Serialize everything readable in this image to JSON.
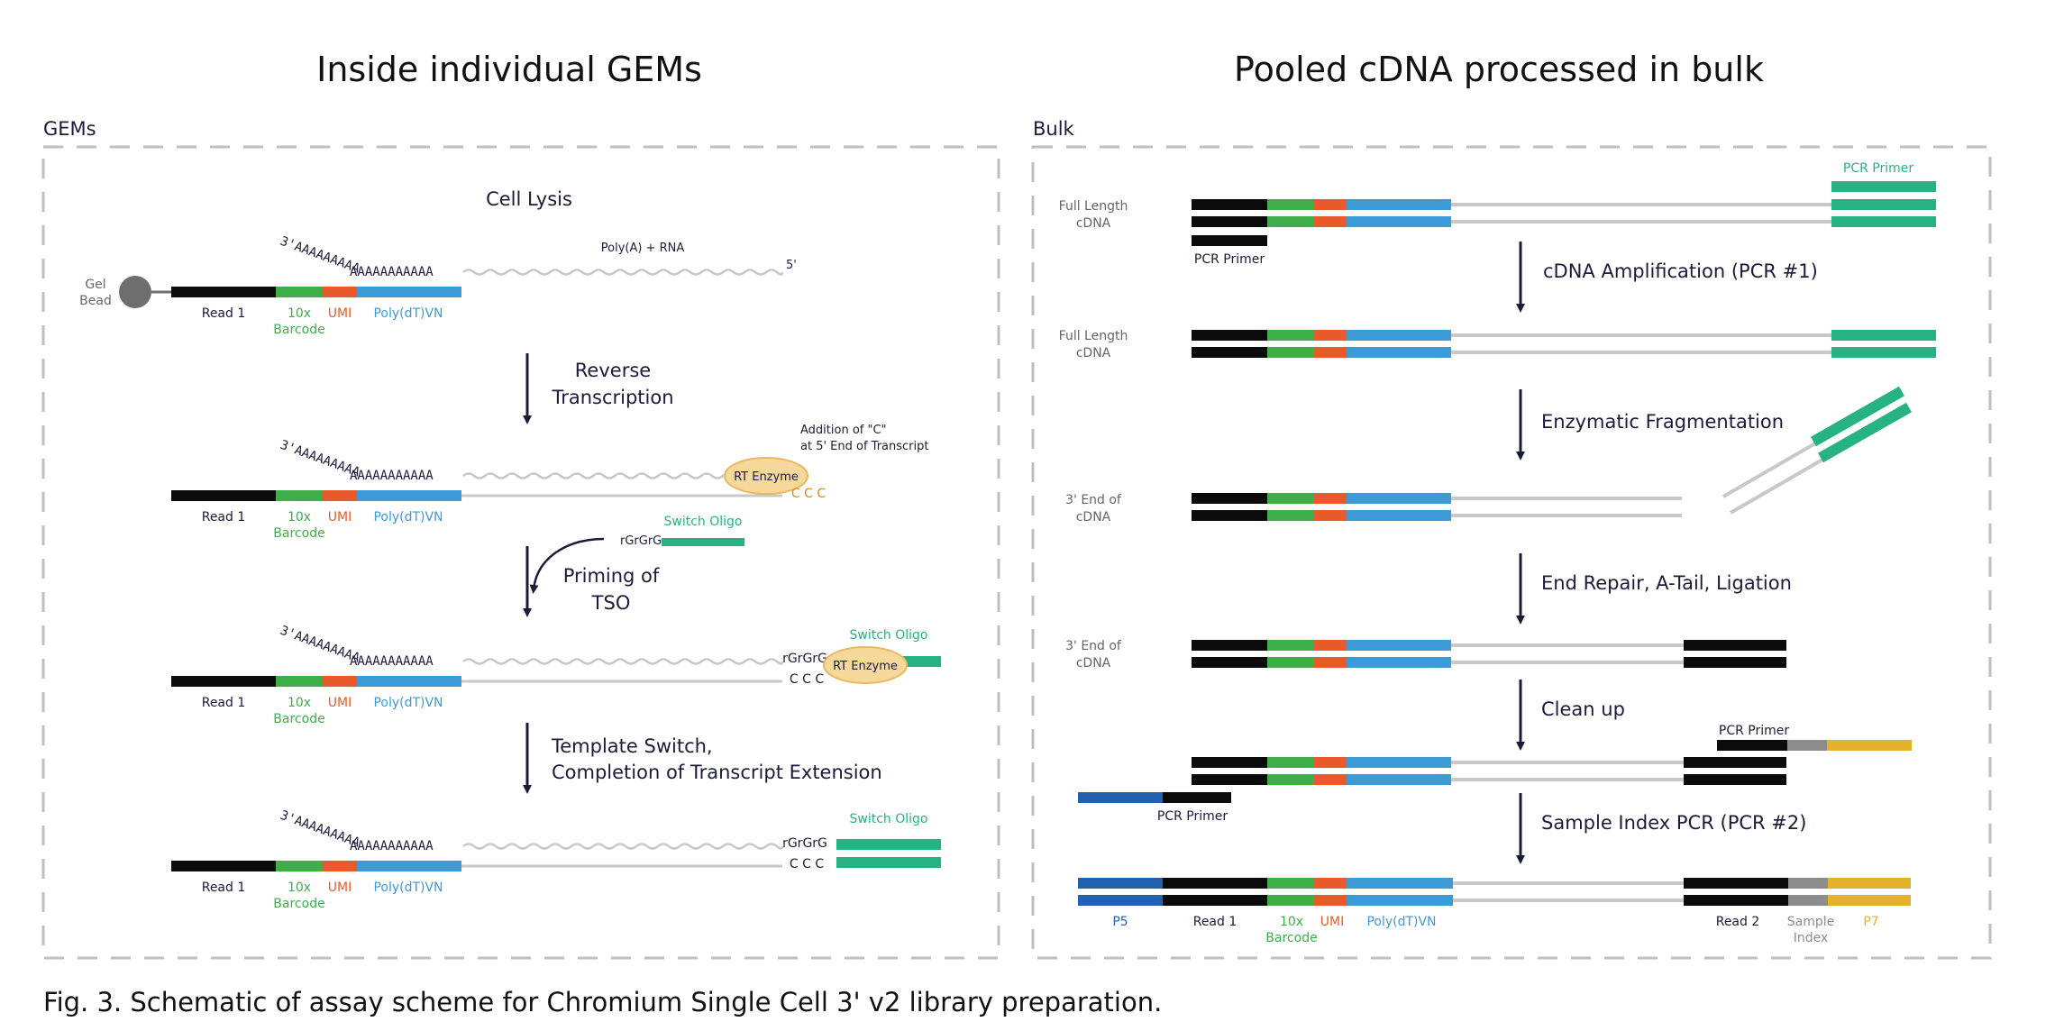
{
  "titles": {
    "left": "Inside individual GEMs",
    "right": "Pooled cDNA processed in bulk"
  },
  "sections": {
    "left": "GEMs",
    "right": "Bulk"
  },
  "colors": {
    "black": "#0b0b0b",
    "barcode": "#3fae49",
    "umi": "#e95a2b",
    "polydt": "#3c9ad6",
    "teal": "#27b283",
    "p5": "#2360ae",
    "sample_index": "#8c8c8c",
    "p7": "#e2b32a",
    "strand": "#c8c8c8",
    "enzyme_fill": "#f6d99a",
    "enzyme_stroke": "#e9b863",
    "ccc": "#d78a1f",
    "dash": "#bfbfbf",
    "text": "#1b1b3a"
  },
  "left": {
    "cell_lysis": "Cell Lysis",
    "poly_a_rna": "Poly(A) + RNA",
    "five_prime": "5'",
    "gel_bead": [
      "Gel",
      "Bead"
    ],
    "three_prime_tail": "3'AAAAAAAAA",
    "poly_a_run": "AAAAAAAAAAA",
    "read1": "Read 1",
    "barcode": [
      "10x",
      "Barcode"
    ],
    "umi": "UMI",
    "polydt": "Poly(dT)VN",
    "step_rt": [
      "Reverse",
      "Transcription"
    ],
    "rt_enzyme": "RT Enzyme",
    "ccc": "C C C",
    "addition_c": [
      "Addition of \"C\"",
      "at 5' End of Transcript"
    ],
    "rgrgrg": "rGrGrG",
    "switch_oligo": "Switch Oligo",
    "step_tso": [
      "Priming of",
      "TSO"
    ],
    "step_switch": [
      "Template Switch,",
      "Completion of Transcript Extension"
    ]
  },
  "right": {
    "full_length_cdna": [
      "Full Length",
      "cDNA"
    ],
    "three_end_cdna": [
      "3' End of",
      "cDNA"
    ],
    "pcr_primer": "PCR Primer",
    "step_amp": "cDNA Amplification (PCR #1)",
    "step_frag": "Enzymatic Fragmentation",
    "step_repair": "End Repair, A-Tail, Ligation",
    "step_clean": "Clean up",
    "step_index": "Sample Index PCR (PCR #2)",
    "p5": "P5",
    "read1": "Read 1",
    "barcode": [
      "10x",
      "Barcode"
    ],
    "umi": "UMI",
    "polydt": "Poly(dT)VN",
    "read2": "Read 2",
    "sample_index": [
      "Sample",
      "Index"
    ],
    "p7": "P7"
  },
  "caption": "Fig. 3. Schematic of assay scheme for Chromium Single Cell 3' v2 library preparation."
}
